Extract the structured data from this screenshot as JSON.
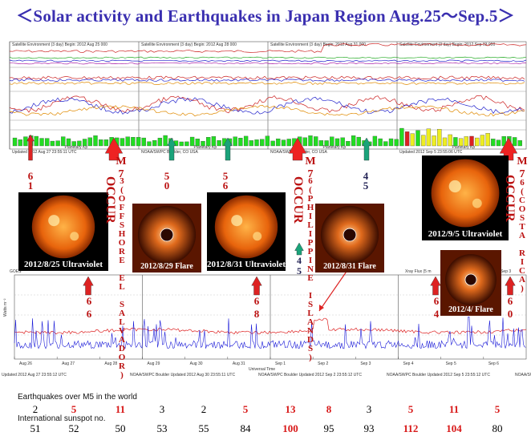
{
  "title": "＜Solar activity and Earthquakes  in Japan Region Aug.25～Sep.5＞",
  "top_panels": {
    "headers": [
      "Satellite Environment (3 day)   Begin: 2012 Aug 25 000",
      "Satellite Environment (3 day)   Begin: 2012 Aug 28 000",
      "Satellite Environment (3 day)   Begin: 2012 Aug 31 000",
      "Satellite Environment (3 day)   Begin: 2012 Sep 03 000"
    ],
    "footers": [
      "Updated 2012 Aug 27 23:55:11 UTC",
      "NOAA/SWPC Boulder, CO USA",
      "NOAA/SWPC Boulder, CO USA",
      "Updated 2012 Sep 5 23:55:06 UTC"
    ],
    "planetary_label": "Planetary Kp",
    "universal_time": "Universal Time"
  },
  "mid_labels": {
    "eq_counts_top": [
      "6",
      "5",
      "5",
      "6",
      "4"
    ],
    "eq_second": [
      "1",
      "0",
      "6",
      "5"
    ],
    "m7_1": {
      "mag": "M 7",
      "desc": "3(OFFSHORE EL SALVADOR)",
      "occur": "OCCUR"
    },
    "m7_2": {
      "mag": "M 7",
      "desc": "6(PHILIPPINE ISLANDS)",
      "occur": "OCCUR"
    },
    "m7_3": {
      "mag": "M 7",
      "desc": "6(COSTA RICA)",
      "occur": "OCCUR"
    },
    "lower_counts": [
      "6",
      "6",
      "6",
      "8",
      "4",
      "5",
      "6",
      "4",
      "6",
      "0"
    ]
  },
  "photos": [
    {
      "caption": "2012/8/25 Ultraviolet",
      "kind": "sun"
    },
    {
      "caption": "2012/8/29 Flare",
      "kind": "corona"
    },
    {
      "caption": "2012/8/31 Ultraviolet",
      "kind": "sun"
    },
    {
      "caption": "2012/8/31 Flare",
      "kind": "corona"
    },
    {
      "caption": "2012/9/5 Ultraviolet",
      "kind": "sun"
    },
    {
      "caption": "2012/4/ Flare",
      "kind": "corona"
    }
  ],
  "xray_panel": {
    "header_left": "GOES",
    "header_right": "Xray Flux (5 m",
    "header_right2": "Begin: 2012 Sep 3",
    "ylabel": "Watts m⁻²",
    "xlabels": [
      "Aug 26",
      "Aug 27",
      "Aug 28",
      "Aug 29",
      "Aug 30",
      "Aug 31",
      "Sep 1",
      "Sep 2",
      "Sep 3",
      "Sep 4",
      "Sep 5",
      "Sep 6"
    ],
    "universal_time": "Universal Time",
    "footers": [
      "Updated 2012 Aug 27 23:55:12 UTC",
      "NOAA/SWPC Boulder Updated 2012 Aug 30 23:55:11 UTC",
      "NOAA/SWPC Boulder Updated 2012 Sep  2 23:55:12 UTC",
      "NOAA/SWPC Boulder Updated 2012 Sep  5 23:55:12 UTC",
      "NOAA/SWPC Boulder"
    ]
  },
  "chart_data": {
    "type": "table",
    "title": "＜Solar activity and Earthquakes  in Japan Region Aug.25～Sep.5＞",
    "rows": [
      {
        "name": "Earthquakes over M5 in the world",
        "values": [
          2,
          5,
          11,
          3,
          2,
          5,
          13,
          8,
          3,
          5,
          11,
          5
        ],
        "highlight": [
          false,
          true,
          true,
          false,
          false,
          true,
          true,
          true,
          false,
          true,
          true,
          true
        ]
      },
      {
        "name": "International sunspot no.",
        "values": [
          51,
          52,
          50,
          53,
          55,
          84,
          100,
          95,
          93,
          112,
          104,
          80
        ],
        "highlight": [
          false,
          false,
          false,
          false,
          false,
          false,
          true,
          false,
          false,
          true,
          true,
          false
        ]
      }
    ]
  },
  "row_labels": {
    "eq": "Earthquakes over M5 in the world",
    "sunspot": "International sunspot no."
  },
  "colors": {
    "title": "#3a2fb0",
    "red": "#d81818",
    "teal": "#1aa37a",
    "green": "#22dd22"
  }
}
